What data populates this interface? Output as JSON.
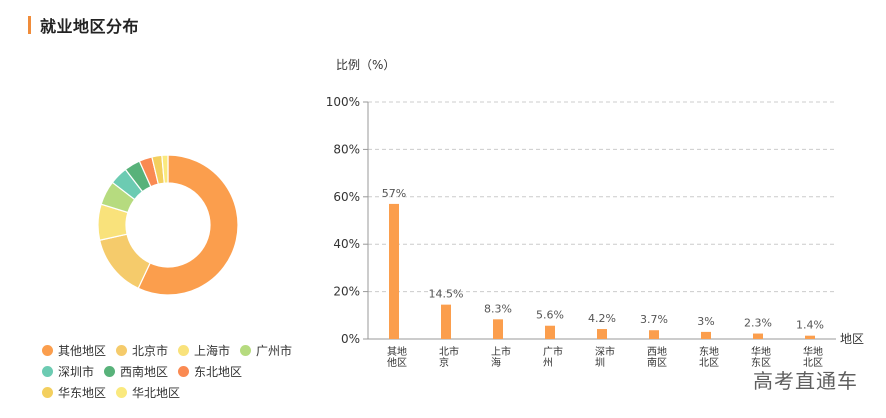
{
  "section": {
    "title": "就业地区分布"
  },
  "colors": {
    "accent": "#f08c3a",
    "bar": "#fb9e4d"
  },
  "chart_data": [
    {
      "type": "pie",
      "variant": "donut",
      "title": "",
      "legend_position": "bottom-left",
      "slices": [
        {
          "label": "其他地区",
          "value": 57,
          "color": "#fb9e4d"
        },
        {
          "label": "北京市",
          "value": 14.5,
          "color": "#f5cb6b"
        },
        {
          "label": "上海市",
          "value": 8.3,
          "color": "#f9e27b"
        },
        {
          "label": "广州市",
          "value": 5.6,
          "color": "#b6db7f"
        },
        {
          "label": "深圳市",
          "value": 4.2,
          "color": "#6ccbb2"
        },
        {
          "label": "西南地区",
          "value": 3.7,
          "color": "#58b27a"
        },
        {
          "label": "东北地区",
          "value": 3,
          "color": "#fa8a52"
        },
        {
          "label": "华东地区",
          "value": 2.3,
          "color": "#f3cf5e"
        },
        {
          "label": "华北地区",
          "value": 1.4,
          "color": "#fae97e"
        }
      ]
    },
    {
      "type": "bar",
      "title": "",
      "ylabel": "比例（%）",
      "xlabel": "地区",
      "ylim": [
        0,
        100
      ],
      "yticks": [
        0,
        20,
        40,
        60,
        80,
        100
      ],
      "ytick_labels": [
        "0%",
        "20%",
        "40%",
        "60%",
        "80%",
        "100%"
      ],
      "grid": true,
      "categories": [
        [
          "其他",
          "地区"
        ],
        [
          "北京",
          "市"
        ],
        [
          "上海",
          "市"
        ],
        [
          "广州",
          "市"
        ],
        [
          "深圳",
          "市"
        ],
        [
          "西南",
          "地区"
        ],
        [
          "东北",
          "地区"
        ],
        [
          "华东",
          "地区"
        ],
        [
          "华北",
          "地区"
        ]
      ],
      "values": [
        57,
        14.5,
        8.3,
        5.6,
        4.2,
        3.7,
        3,
        2.3,
        1.4
      ],
      "value_labels": [
        "57%",
        "14.5%",
        "8.3%",
        "5.6%",
        "4.2%",
        "3.7%",
        "3%",
        "2.3%",
        "1.4%"
      ]
    }
  ],
  "watermark": "高考直通车"
}
